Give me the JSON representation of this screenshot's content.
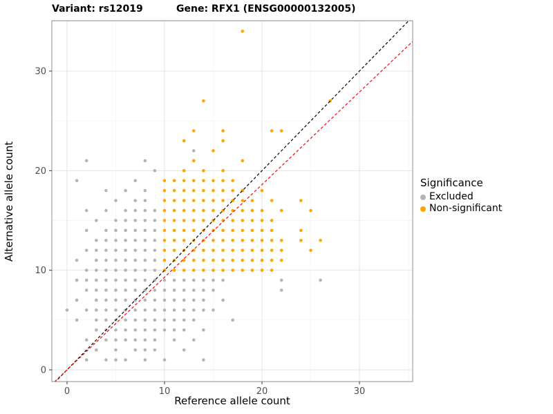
{
  "chart_data": {
    "type": "scatter",
    "title_left": "Variant: rs12019",
    "title_right": "Gene: RFX1 (ENSG00000132005)",
    "xlabel": "Reference allele count",
    "ylabel": "Alternative allele count",
    "legend_title": "Significance",
    "legend_position": "right",
    "grid": true,
    "xlim": [
      -1.6,
      35.5
    ],
    "ylim": [
      -1.2,
      35.1
    ],
    "x_ticks": [
      0,
      10,
      20,
      30
    ],
    "y_ticks": [
      0,
      10,
      20,
      30
    ],
    "x_minor": [
      5,
      15,
      25,
      35
    ],
    "y_minor": [
      5,
      15,
      25,
      35
    ],
    "point_radius": 2.3,
    "panel_border_color": "#8c8c8c",
    "grid_major_color": "#e4e4e4",
    "grid_minor_color": "#f2f2f2",
    "tick_label_color": "#4d4d4d",
    "lines": [
      {
        "name": "identity-line",
        "slope": 1.0,
        "intercept": 0,
        "color": "#000000",
        "dash": "4,3"
      },
      {
        "name": "fit-line",
        "slope": 0.93,
        "intercept": 0,
        "color": "#ff0000",
        "dash": "4,3"
      }
    ],
    "series": [
      {
        "name": "Excluded",
        "color": "#b4b4b4",
        "points": [
          [
            2,
            1
          ],
          [
            4,
            1
          ],
          [
            5,
            1
          ],
          [
            6,
            1
          ],
          [
            8,
            1
          ],
          [
            10,
            1
          ],
          [
            14,
            1
          ],
          [
            3,
            2
          ],
          [
            5,
            2
          ],
          [
            7,
            2
          ],
          [
            8,
            2
          ],
          [
            9,
            2
          ],
          [
            12,
            2
          ],
          [
            2,
            3
          ],
          [
            4,
            3
          ],
          [
            5,
            3
          ],
          [
            6,
            3
          ],
          [
            7,
            3
          ],
          [
            8,
            3
          ],
          [
            9,
            3
          ],
          [
            11,
            3
          ],
          [
            13,
            3
          ],
          [
            3,
            4
          ],
          [
            4,
            4
          ],
          [
            5,
            4
          ],
          [
            6,
            4
          ],
          [
            7,
            4
          ],
          [
            8,
            4
          ],
          [
            9,
            4
          ],
          [
            10,
            4
          ],
          [
            11,
            4
          ],
          [
            12,
            4
          ],
          [
            14,
            4
          ],
          [
            1,
            5
          ],
          [
            3,
            5
          ],
          [
            4,
            5
          ],
          [
            5,
            5
          ],
          [
            6,
            5
          ],
          [
            7,
            5
          ],
          [
            8,
            5
          ],
          [
            9,
            5
          ],
          [
            10,
            5
          ],
          [
            11,
            5
          ],
          [
            12,
            5
          ],
          [
            13,
            5
          ],
          [
            17,
            5
          ],
          [
            0,
            6
          ],
          [
            2,
            6
          ],
          [
            3,
            6
          ],
          [
            4,
            6
          ],
          [
            5,
            6
          ],
          [
            6,
            6
          ],
          [
            7,
            6
          ],
          [
            8,
            6
          ],
          [
            9,
            6
          ],
          [
            10,
            6
          ],
          [
            11,
            6
          ],
          [
            12,
            6
          ],
          [
            13,
            6
          ],
          [
            14,
            6
          ],
          [
            15,
            6
          ],
          [
            1,
            7
          ],
          [
            3,
            7
          ],
          [
            4,
            7
          ],
          [
            5,
            7
          ],
          [
            6,
            7
          ],
          [
            7,
            7
          ],
          [
            8,
            7
          ],
          [
            9,
            7
          ],
          [
            10,
            7
          ],
          [
            11,
            7
          ],
          [
            12,
            7
          ],
          [
            13,
            7
          ],
          [
            14,
            7
          ],
          [
            16,
            7
          ],
          [
            2,
            8
          ],
          [
            3,
            8
          ],
          [
            4,
            8
          ],
          [
            5,
            8
          ],
          [
            6,
            8
          ],
          [
            7,
            8
          ],
          [
            8,
            8
          ],
          [
            9,
            8
          ],
          [
            10,
            8
          ],
          [
            11,
            8
          ],
          [
            12,
            8
          ],
          [
            13,
            8
          ],
          [
            14,
            8
          ],
          [
            15,
            8
          ],
          [
            22,
            8
          ],
          [
            1,
            9
          ],
          [
            2,
            9
          ],
          [
            3,
            9
          ],
          [
            4,
            9
          ],
          [
            5,
            9
          ],
          [
            6,
            9
          ],
          [
            7,
            9
          ],
          [
            8,
            9
          ],
          [
            9,
            9
          ],
          [
            10,
            9
          ],
          [
            11,
            9
          ],
          [
            12,
            9
          ],
          [
            13,
            9
          ],
          [
            14,
            9
          ],
          [
            15,
            9
          ],
          [
            16,
            9
          ],
          [
            22,
            9
          ],
          [
            26,
            9
          ],
          [
            2,
            10
          ],
          [
            3,
            10
          ],
          [
            4,
            10
          ],
          [
            5,
            10
          ],
          [
            6,
            10
          ],
          [
            7,
            10
          ],
          [
            8,
            10
          ],
          [
            9,
            10
          ],
          [
            1,
            11
          ],
          [
            3,
            11
          ],
          [
            4,
            11
          ],
          [
            5,
            11
          ],
          [
            6,
            11
          ],
          [
            7,
            11
          ],
          [
            8,
            11
          ],
          [
            9,
            11
          ],
          [
            2,
            12
          ],
          [
            3,
            12
          ],
          [
            4,
            12
          ],
          [
            5,
            12
          ],
          [
            6,
            12
          ],
          [
            7,
            12
          ],
          [
            8,
            12
          ],
          [
            9,
            12
          ],
          [
            3,
            13
          ],
          [
            4,
            13
          ],
          [
            5,
            13
          ],
          [
            6,
            13
          ],
          [
            7,
            13
          ],
          [
            8,
            13
          ],
          [
            9,
            13
          ],
          [
            2,
            14
          ],
          [
            4,
            14
          ],
          [
            5,
            14
          ],
          [
            6,
            14
          ],
          [
            7,
            14
          ],
          [
            8,
            14
          ],
          [
            9,
            14
          ],
          [
            3,
            15
          ],
          [
            5,
            15
          ],
          [
            6,
            15
          ],
          [
            7,
            15
          ],
          [
            8,
            15
          ],
          [
            9,
            15
          ],
          [
            2,
            16
          ],
          [
            4,
            16
          ],
          [
            6,
            16
          ],
          [
            7,
            16
          ],
          [
            8,
            16
          ],
          [
            9,
            16
          ],
          [
            5,
            17
          ],
          [
            7,
            17
          ],
          [
            8,
            17
          ],
          [
            4,
            18
          ],
          [
            6,
            18
          ],
          [
            8,
            18
          ],
          [
            1,
            19
          ],
          [
            7,
            19
          ],
          [
            9,
            20
          ],
          [
            2,
            21
          ],
          [
            8,
            21
          ],
          [
            13,
            22
          ]
        ]
      },
      {
        "name": "Non-significant",
        "color": "#ffa500",
        "points": [
          [
            10,
            10
          ],
          [
            11,
            10
          ],
          [
            12,
            10
          ],
          [
            13,
            10
          ],
          [
            14,
            10
          ],
          [
            15,
            10
          ],
          [
            16,
            10
          ],
          [
            17,
            10
          ],
          [
            18,
            10
          ],
          [
            19,
            10
          ],
          [
            20,
            10
          ],
          [
            21,
            10
          ],
          [
            10,
            11
          ],
          [
            11,
            11
          ],
          [
            12,
            11
          ],
          [
            13,
            11
          ],
          [
            14,
            11
          ],
          [
            15,
            11
          ],
          [
            16,
            11
          ],
          [
            17,
            11
          ],
          [
            18,
            11
          ],
          [
            19,
            11
          ],
          [
            20,
            11
          ],
          [
            21,
            11
          ],
          [
            22,
            11
          ],
          [
            10,
            12
          ],
          [
            11,
            12
          ],
          [
            12,
            12
          ],
          [
            13,
            12
          ],
          [
            14,
            12
          ],
          [
            15,
            12
          ],
          [
            16,
            12
          ],
          [
            17,
            12
          ],
          [
            18,
            12
          ],
          [
            19,
            12
          ],
          [
            20,
            12
          ],
          [
            21,
            12
          ],
          [
            22,
            12
          ],
          [
            25,
            12
          ],
          [
            10,
            13
          ],
          [
            11,
            13
          ],
          [
            12,
            13
          ],
          [
            13,
            13
          ],
          [
            14,
            13
          ],
          [
            15,
            13
          ],
          [
            16,
            13
          ],
          [
            17,
            13
          ],
          [
            18,
            13
          ],
          [
            19,
            13
          ],
          [
            20,
            13
          ],
          [
            21,
            13
          ],
          [
            22,
            13
          ],
          [
            24,
            13
          ],
          [
            26,
            13
          ],
          [
            10,
            14
          ],
          [
            11,
            14
          ],
          [
            12,
            14
          ],
          [
            13,
            14
          ],
          [
            14,
            14
          ],
          [
            15,
            14
          ],
          [
            16,
            14
          ],
          [
            17,
            14
          ],
          [
            18,
            14
          ],
          [
            19,
            14
          ],
          [
            20,
            14
          ],
          [
            21,
            14
          ],
          [
            24,
            14
          ],
          [
            10,
            15
          ],
          [
            11,
            15
          ],
          [
            12,
            15
          ],
          [
            13,
            15
          ],
          [
            14,
            15
          ],
          [
            15,
            15
          ],
          [
            16,
            15
          ],
          [
            17,
            15
          ],
          [
            18,
            15
          ],
          [
            19,
            15
          ],
          [
            20,
            15
          ],
          [
            21,
            15
          ],
          [
            10,
            16
          ],
          [
            11,
            16
          ],
          [
            12,
            16
          ],
          [
            13,
            16
          ],
          [
            14,
            16
          ],
          [
            15,
            16
          ],
          [
            16,
            16
          ],
          [
            17,
            16
          ],
          [
            18,
            16
          ],
          [
            19,
            16
          ],
          [
            20,
            16
          ],
          [
            22,
            16
          ],
          [
            25,
            16
          ],
          [
            10,
            17
          ],
          [
            11,
            17
          ],
          [
            12,
            17
          ],
          [
            13,
            17
          ],
          [
            14,
            17
          ],
          [
            15,
            17
          ],
          [
            16,
            17
          ],
          [
            17,
            17
          ],
          [
            18,
            17
          ],
          [
            19,
            17
          ],
          [
            21,
            17
          ],
          [
            24,
            17
          ],
          [
            10,
            18
          ],
          [
            11,
            18
          ],
          [
            12,
            18
          ],
          [
            13,
            18
          ],
          [
            14,
            18
          ],
          [
            15,
            18
          ],
          [
            16,
            18
          ],
          [
            17,
            18
          ],
          [
            18,
            18
          ],
          [
            20,
            18
          ],
          [
            10,
            19
          ],
          [
            11,
            19
          ],
          [
            12,
            19
          ],
          [
            13,
            19
          ],
          [
            14,
            19
          ],
          [
            15,
            19
          ],
          [
            16,
            19
          ],
          [
            17,
            19
          ],
          [
            12,
            20
          ],
          [
            14,
            20
          ],
          [
            16,
            20
          ],
          [
            13,
            21
          ],
          [
            18,
            21
          ],
          [
            15,
            22
          ],
          [
            12,
            23
          ],
          [
            16,
            23
          ],
          [
            13,
            24
          ],
          [
            16,
            24
          ],
          [
            21,
            24
          ],
          [
            22,
            24
          ],
          [
            14,
            27
          ],
          [
            27,
            27
          ],
          [
            18,
            34
          ]
        ]
      }
    ]
  }
}
